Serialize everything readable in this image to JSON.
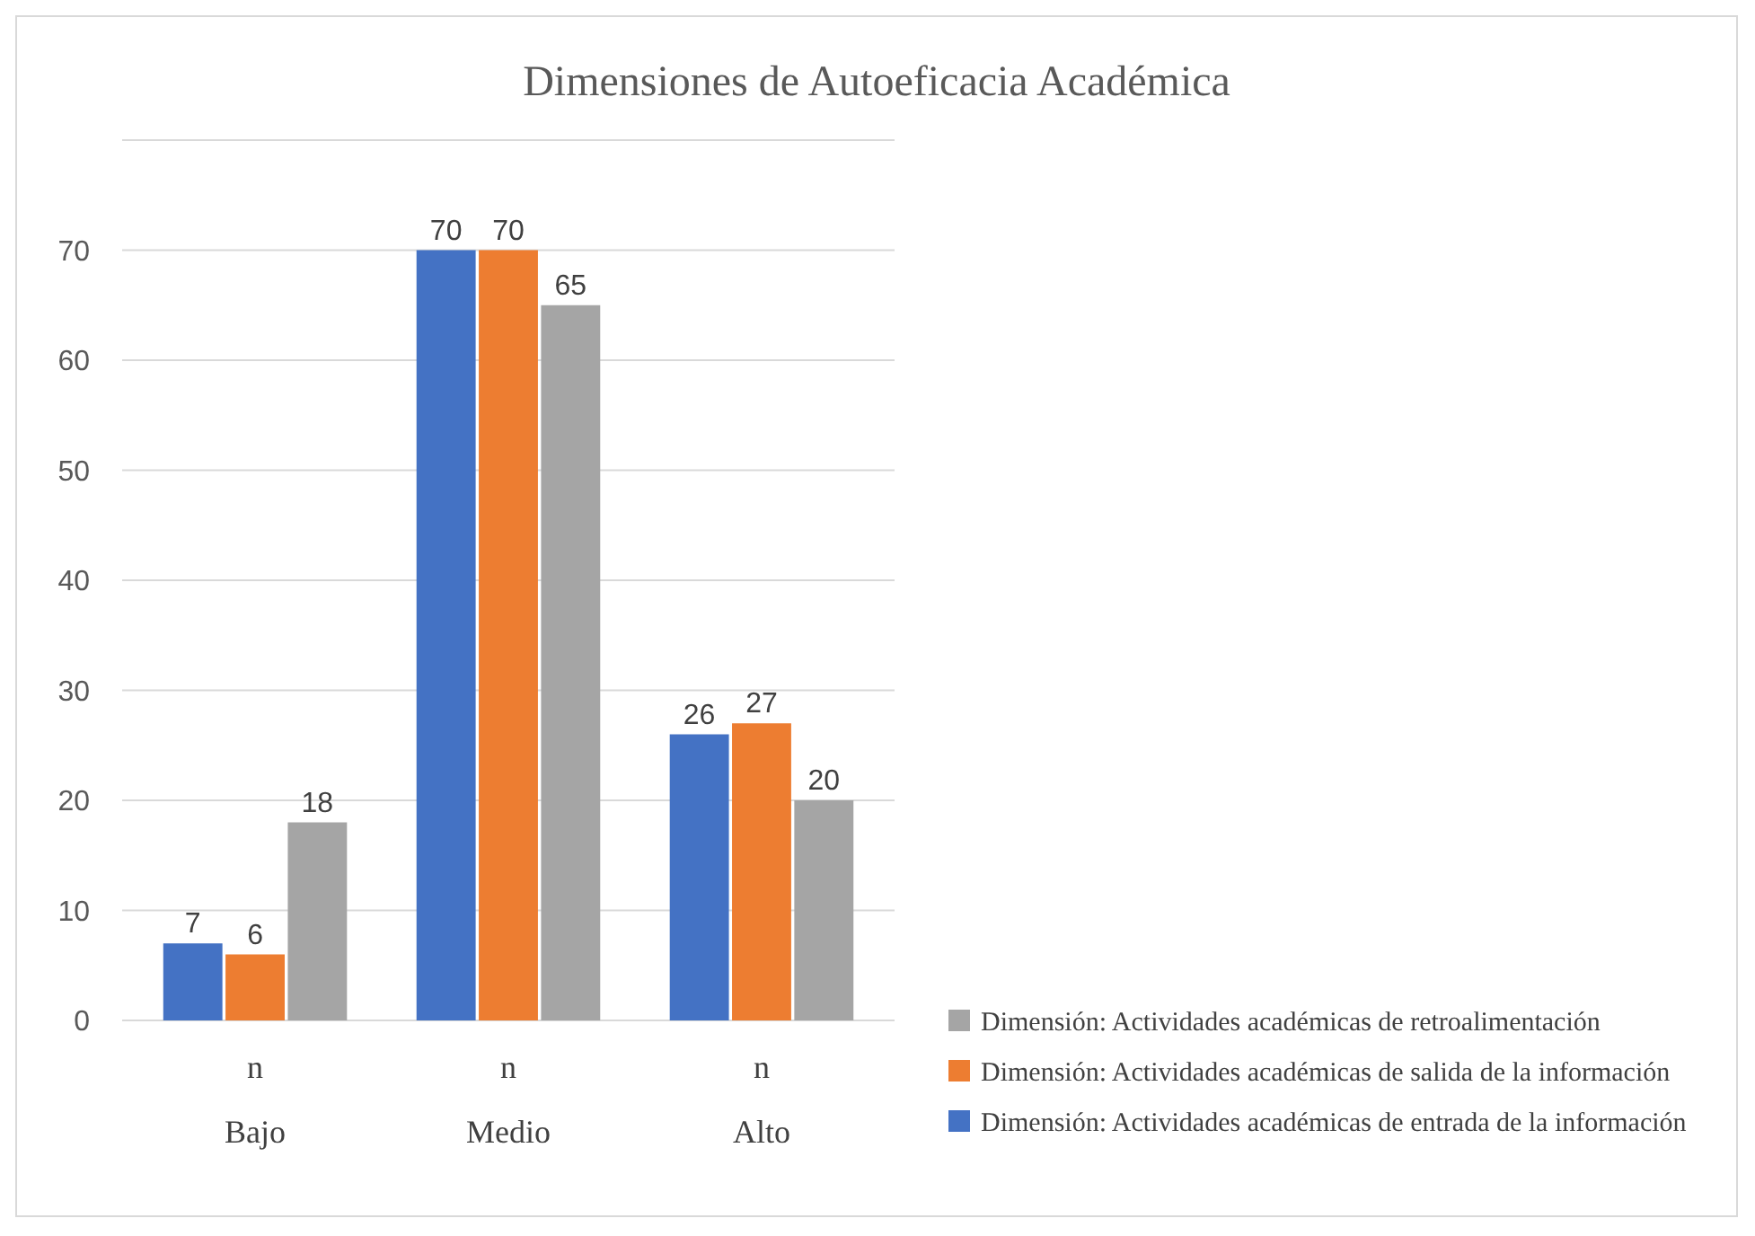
{
  "chart_data": {
    "type": "bar",
    "title": "Dimensiones de Autoeficacia Académica",
    "categories": [
      "n\nBajo",
      "n\nMedio",
      "n\nAlto"
    ],
    "series": [
      {
        "name": "Dimensión: Actividades académicas de entrada de la información",
        "color": "#4472c4",
        "values": [
          7,
          70,
          26
        ]
      },
      {
        "name": "Dimensión: Actividades académicas de salida de la información",
        "color": "#ed7d31",
        "values": [
          6,
          70,
          27
        ]
      },
      {
        "name": "Dimensión: Actividades académicas de retroalimentación",
        "color": "#a5a5a5",
        "values": [
          18,
          65,
          20
        ]
      }
    ],
    "ylim": [
      0,
      80
    ],
    "yticks": [
      0,
      10,
      20,
      30,
      40,
      50,
      60,
      70
    ],
    "grid": "y",
    "data_labels": true,
    "legend": "right"
  }
}
